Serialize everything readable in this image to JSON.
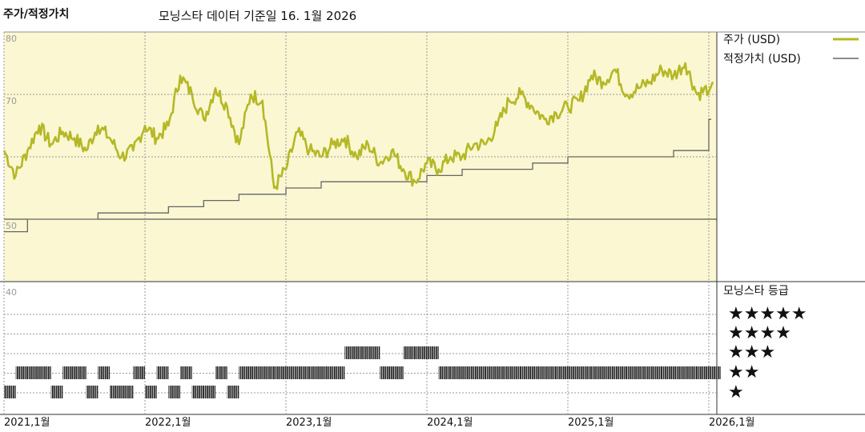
{
  "header": {
    "title": "주가/적정가치",
    "subtitle": "모닝스타 데이터 기준일 16. 1월 2026"
  },
  "colors": {
    "price": "#b5b826",
    "fair_value": "#666666",
    "plot_bg": "#faf7d2"
  },
  "legend": {
    "price_label": "주가 (USD)",
    "fair_label": "적정가치 (USD)",
    "rating_title": "모닝스타 등급",
    "stars": [
      "★★★★★",
      "★★★★",
      "★★★",
      "★★",
      "★"
    ]
  },
  "chart_data": [
    {
      "type": "line",
      "title": "주가/적정가치",
      "x_start": "2021-01",
      "x_end": "2026-01",
      "x_tick_labels": [
        "2021,1월",
        "2022,1월",
        "2023,1월",
        "2024,1월",
        "2025,1월",
        "2026,1월"
      ],
      "y_tick_labels": [
        "80",
        "70",
        "50"
      ],
      "ylim": [
        40,
        80
      ],
      "grid": true,
      "legend_position": "right",
      "series": [
        {
          "name": "주가 (USD)",
          "x": [
            "2021-01",
            "2021-02",
            "2021-03",
            "2021-04",
            "2021-05",
            "2021-06",
            "2021-07",
            "2021-08",
            "2021-09",
            "2021-10",
            "2021-11",
            "2021-12",
            "2022-01",
            "2022-02",
            "2022-03",
            "2022-04",
            "2022-05",
            "2022-06",
            "2022-07",
            "2022-08",
            "2022-09",
            "2022-10",
            "2022-11",
            "2022-12",
            "2023-01",
            "2023-02",
            "2023-03",
            "2023-04",
            "2023-05",
            "2023-06",
            "2023-07",
            "2023-08",
            "2023-09",
            "2023-10",
            "2023-11",
            "2023-12",
            "2024-01",
            "2024-02",
            "2024-03",
            "2024-04",
            "2024-05",
            "2024-06",
            "2024-07",
            "2024-08",
            "2024-09",
            "2024-10",
            "2024-11",
            "2024-12",
            "2025-01",
            "2025-02",
            "2025-03",
            "2025-04",
            "2025-05",
            "2025-06",
            "2025-07",
            "2025-08",
            "2025-09",
            "2025-10",
            "2025-11",
            "2025-12",
            "2026-01"
          ],
          "y": [
            61,
            57,
            61,
            65,
            62,
            64,
            63,
            61,
            65,
            63,
            60,
            61,
            65,
            63,
            65,
            73,
            70,
            66,
            71,
            68,
            62,
            70,
            69,
            55,
            58,
            64,
            61,
            60,
            62,
            63,
            60,
            62,
            59,
            61,
            58,
            56,
            59,
            58,
            60,
            60,
            62,
            62,
            65,
            69,
            70,
            68,
            66,
            67,
            68,
            69,
            73,
            72,
            74,
            70,
            71,
            72,
            74,
            73,
            75,
            70,
            71
          ]
        },
        {
          "name": "적정가치 (USD)",
          "x": [
            "2021-01",
            "2021-03",
            "2021-06",
            "2021-09",
            "2021-12",
            "2022-03",
            "2022-06",
            "2022-09",
            "2023-01",
            "2023-04",
            "2023-07",
            "2023-10",
            "2024-01",
            "2024-04",
            "2024-07",
            "2024-10",
            "2025-01",
            "2025-04",
            "2025-07",
            "2025-10",
            "2026-01"
          ],
          "y": [
            48,
            50,
            50,
            51,
            51,
            52,
            53,
            54,
            55,
            56,
            56,
            56,
            57,
            58,
            58,
            59,
            60,
            60,
            60,
            61,
            66
          ]
        }
      ]
    },
    {
      "type": "table",
      "title": "모닝스타 등급",
      "levels": [
        1,
        2,
        3,
        4,
        5
      ],
      "rating_by_month": [
        1,
        2,
        2,
        2,
        1,
        2,
        2,
        1,
        2,
        1,
        1,
        2,
        1,
        2,
        1,
        2,
        1,
        1,
        2,
        1,
        2,
        2,
        2,
        2,
        2,
        2,
        2,
        2,
        2,
        3,
        3,
        3,
        2,
        2,
        3,
        3,
        3,
        2,
        2,
        2,
        2,
        2,
        2,
        2,
        2,
        2,
        2,
        2,
        2,
        2,
        2,
        2,
        2,
        2,
        2,
        2,
        2,
        2,
        2,
        2,
        2
      ]
    }
  ]
}
